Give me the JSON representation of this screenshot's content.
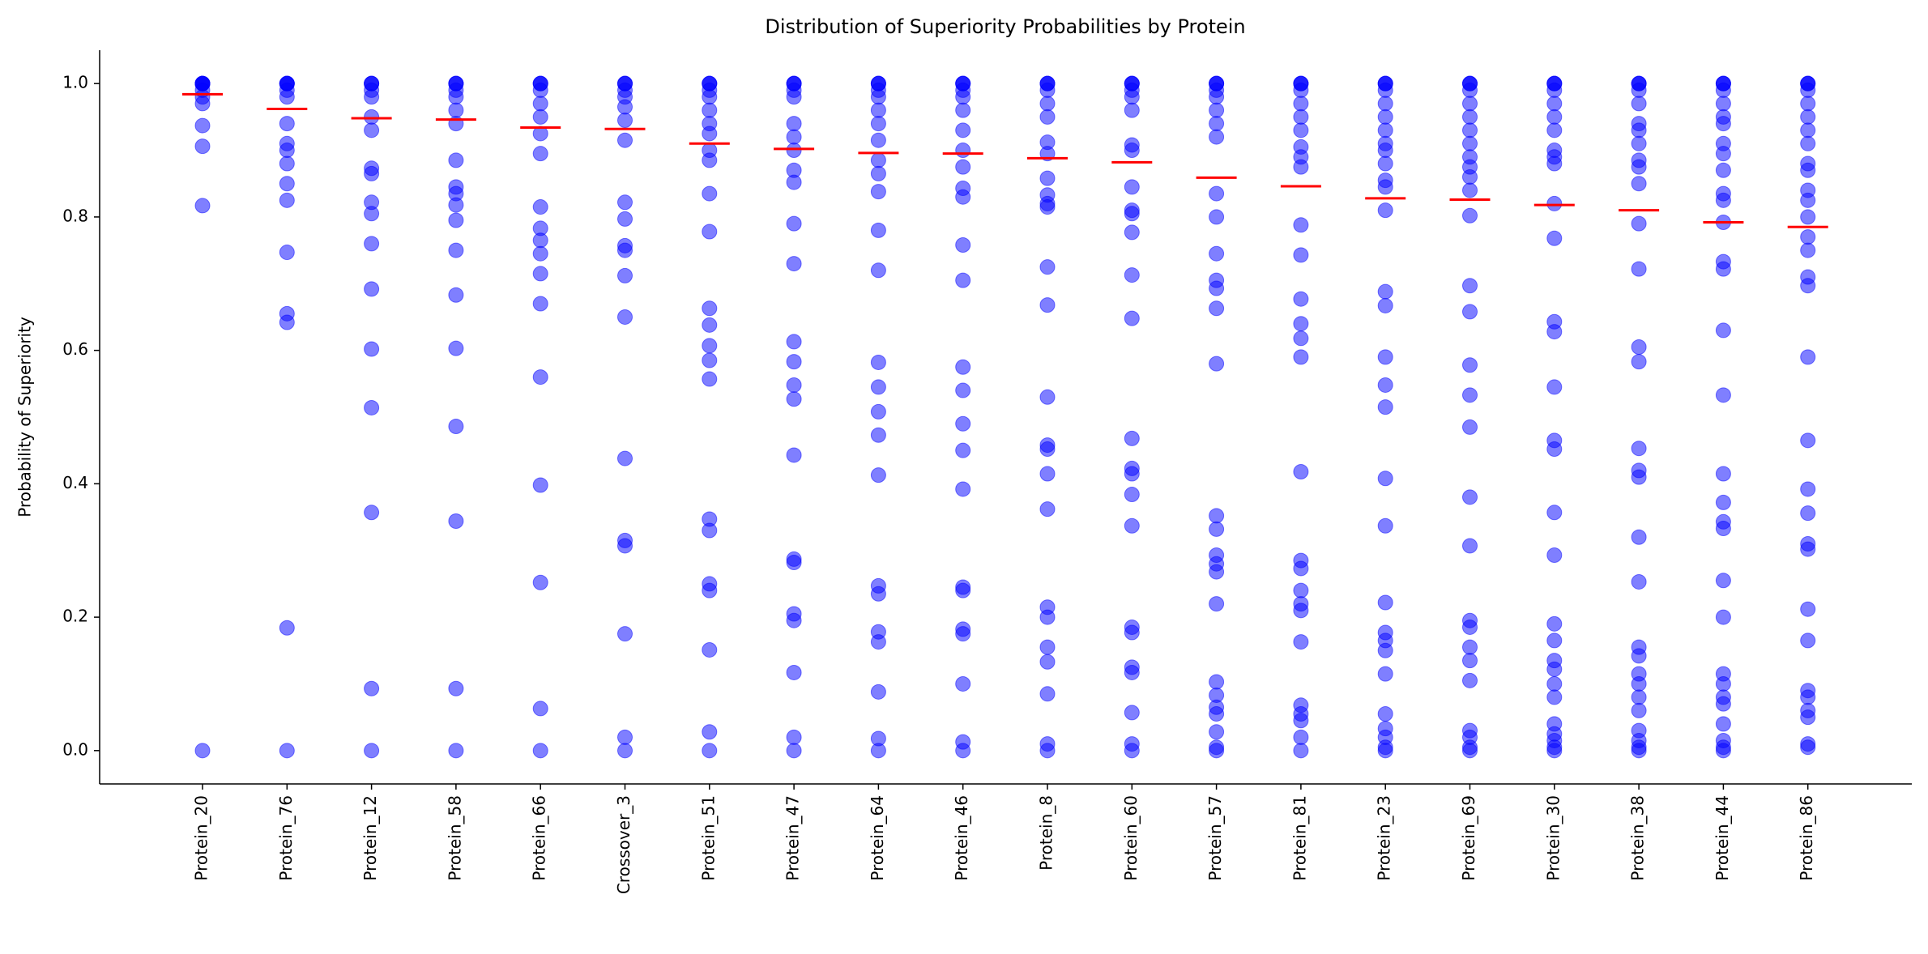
{
  "chart_data": {
    "type": "strip",
    "title": "Distribution of Superiority Probabilities by Protein",
    "ylabel": "Probability of Superiority",
    "categories": [
      "Protein_20",
      "Protein_76",
      "Protein_12",
      "Protein_58",
      "Protein_66",
      "Crossover_3",
      "Protein_51",
      "Protein_47",
      "Protein_64",
      "Protein_46",
      "Protein_8",
      "Protein_60",
      "Protein_57",
      "Protein_81",
      "Protein_23",
      "Protein_69",
      "Protein_30",
      "Protein_38",
      "Protein_44",
      "Protein_86"
    ],
    "values": [
      [
        1,
        1,
        1,
        1,
        1,
        0.99,
        0.98,
        0.97,
        0.937,
        0.906,
        0.817,
        0
      ],
      [
        1,
        1,
        1,
        1,
        0.99,
        0.98,
        0.94,
        0.91,
        0.9,
        0.88,
        0.85,
        0.825,
        0.747,
        0.655,
        0.642,
        0.184,
        0
      ],
      [
        1,
        1,
        1,
        0.99,
        0.98,
        0.95,
        0.93,
        0.873,
        0.865,
        0.822,
        0.805,
        0.76,
        0.692,
        0.602,
        0.514,
        0.357,
        0.093,
        0
      ],
      [
        1,
        1,
        1,
        0.99,
        0.98,
        0.96,
        0.94,
        0.885,
        0.845,
        0.835,
        0.818,
        0.795,
        0.75,
        0.683,
        0.603,
        0.486,
        0.344,
        0.093,
        0
      ],
      [
        1,
        1,
        1,
        0.99,
        0.97,
        0.95,
        0.925,
        0.895,
        0.815,
        0.783,
        0.765,
        0.745,
        0.715,
        0.67,
        0.56,
        0.398,
        0.252,
        0.063,
        0
      ],
      [
        1,
        1,
        1,
        0.99,
        0.98,
        0.965,
        0.945,
        0.915,
        0.822,
        0.797,
        0.757,
        0.75,
        0.712,
        0.65,
        0.438,
        0.315,
        0.307,
        0.175,
        0.02,
        0
      ],
      [
        1,
        1,
        1,
        0.99,
        0.98,
        0.96,
        0.94,
        0.925,
        0.9,
        0.885,
        0.835,
        0.778,
        0.663,
        0.638,
        0.607,
        0.585,
        0.557,
        0.347,
        0.33,
        0.25,
        0.24,
        0.151,
        0.028,
        0
      ],
      [
        1,
        1,
        1,
        0.99,
        0.98,
        0.94,
        0.92,
        0.9,
        0.87,
        0.852,
        0.79,
        0.73,
        0.613,
        0.583,
        0.548,
        0.527,
        0.443,
        0.287,
        0.282,
        0.205,
        0.195,
        0.117,
        0.02,
        0
      ],
      [
        1,
        1,
        1,
        0.99,
        0.98,
        0.96,
        0.94,
        0.915,
        0.885,
        0.865,
        0.838,
        0.78,
        0.72,
        0.582,
        0.545,
        0.508,
        0.473,
        0.413,
        0.247,
        0.235,
        0.178,
        0.163,
        0.088,
        0.018,
        0
      ],
      [
        1,
        1,
        1,
        0.99,
        0.98,
        0.96,
        0.93,
        0.9,
        0.875,
        0.843,
        0.83,
        0.758,
        0.705,
        0.575,
        0.54,
        0.49,
        0.45,
        0.392,
        0.245,
        0.24,
        0.182,
        0.175,
        0.1,
        0.013,
        0
      ],
      [
        1,
        1,
        1,
        0.99,
        0.97,
        0.95,
        0.912,
        0.895,
        0.858,
        0.833,
        0.82,
        0.815,
        0.725,
        0.668,
        0.53,
        0.458,
        0.452,
        0.415,
        0.362,
        0.215,
        0.2,
        0.155,
        0.133,
        0.085,
        0.01,
        0
      ],
      [
        1,
        1,
        1,
        0.99,
        0.98,
        0.96,
        0.908,
        0.9,
        0.845,
        0.81,
        0.805,
        0.777,
        0.713,
        0.648,
        0.468,
        0.423,
        0.415,
        0.384,
        0.337,
        0.185,
        0.177,
        0.125,
        0.117,
        0.057,
        0.01,
        0
      ],
      [
        1,
        1,
        1,
        0.99,
        0.98,
        0.96,
        0.94,
        0.92,
        0.835,
        0.8,
        0.745,
        0.705,
        0.693,
        0.663,
        0.58,
        0.352,
        0.332,
        0.293,
        0.28,
        0.268,
        0.22,
        0.103,
        0.083,
        0.065,
        0.055,
        0.028,
        0.005,
        0
      ],
      [
        1,
        1,
        1,
        0.99,
        0.97,
        0.95,
        0.93,
        0.905,
        0.89,
        0.875,
        0.788,
        0.743,
        0.677,
        0.64,
        0.618,
        0.59,
        0.418,
        0.285,
        0.273,
        0.24,
        0.22,
        0.21,
        0.163,
        0.068,
        0.055,
        0.045,
        0.02,
        0
      ],
      [
        1,
        1,
        1,
        0.99,
        0.97,
        0.95,
        0.93,
        0.91,
        0.9,
        0.88,
        0.855,
        0.845,
        0.81,
        0.688,
        0.667,
        0.59,
        0.548,
        0.515,
        0.408,
        0.337,
        0.222,
        0.177,
        0.165,
        0.15,
        0.115,
        0.055,
        0.033,
        0.02,
        0.005,
        0
      ],
      [
        1,
        1,
        1,
        0.99,
        0.97,
        0.95,
        0.93,
        0.91,
        0.89,
        0.875,
        0.86,
        0.84,
        0.802,
        0.697,
        0.658,
        0.578,
        0.533,
        0.485,
        0.38,
        0.307,
        0.195,
        0.185,
        0.155,
        0.135,
        0.105,
        0.03,
        0.02,
        0.005,
        0
      ],
      [
        1,
        1,
        1,
        0.99,
        0.97,
        0.95,
        0.93,
        0.9,
        0.89,
        0.88,
        0.82,
        0.768,
        0.643,
        0.628,
        0.545,
        0.465,
        0.452,
        0.357,
        0.293,
        0.19,
        0.165,
        0.135,
        0.122,
        0.1,
        0.08,
        0.04,
        0.025,
        0.015,
        0.005,
        0
      ],
      [
        1,
        1,
        1,
        0.99,
        0.97,
        0.94,
        0.93,
        0.91,
        0.885,
        0.875,
        0.85,
        0.79,
        0.722,
        0.605,
        0.583,
        0.453,
        0.42,
        0.41,
        0.32,
        0.253,
        0.155,
        0.142,
        0.115,
        0.1,
        0.08,
        0.06,
        0.03,
        0.015,
        0.005,
        0
      ],
      [
        1,
        1,
        1,
        0.99,
        0.97,
        0.95,
        0.94,
        0.91,
        0.895,
        0.87,
        0.835,
        0.825,
        0.792,
        0.733,
        0.722,
        0.63,
        0.533,
        0.415,
        0.372,
        0.343,
        0.333,
        0.255,
        0.2,
        0.115,
        0.1,
        0.08,
        0.07,
        0.04,
        0.015,
        0.005,
        0
      ],
      [
        1,
        1,
        1,
        0.99,
        0.97,
        0.95,
        0.93,
        0.91,
        0.88,
        0.87,
        0.84,
        0.825,
        0.8,
        0.77,
        0.75,
        0.71,
        0.697,
        0.59,
        0.465,
        0.392,
        0.356,
        0.31,
        0.302,
        0.212,
        0.165,
        0.09,
        0.08,
        0.06,
        0.05,
        0.01,
        0.005
      ]
    ],
    "means": [
      0.984,
      0.962,
      0.948,
      0.946,
      0.934,
      0.932,
      0.91,
      0.902,
      0.896,
      0.895,
      0.888,
      0.882,
      0.859,
      0.846,
      0.828,
      0.826,
      0.818,
      0.81,
      0.792,
      0.785
    ],
    "color": "#0000ff",
    "mean_color": "#ff0000",
    "ylim": [
      -0.05,
      1.05
    ],
    "yticks": [
      {
        "value": 0,
        "label": "0.0"
      },
      0.2,
      0.4,
      0.6,
      0.8,
      {
        "value": 1,
        "label": "1.0"
      }
    ],
    "grid": false
  }
}
